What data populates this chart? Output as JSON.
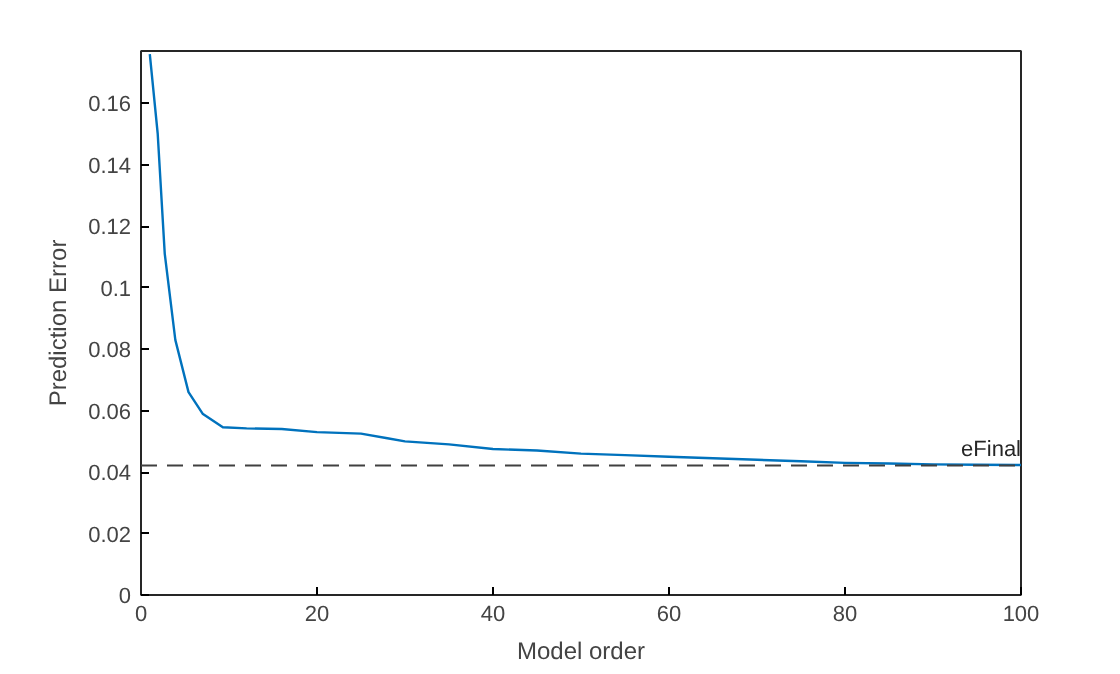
{
  "chart_data": {
    "type": "line",
    "xlabel": "Model order",
    "ylabel": "Prediction Error",
    "xlim": [
      0,
      100
    ],
    "ylim": [
      0,
      0.177
    ],
    "xticks": [
      0,
      20,
      40,
      60,
      80,
      100
    ],
    "yticks": [
      0,
      0.02,
      0.04,
      0.06,
      0.08,
      0.1,
      0.12,
      0.14,
      0.16
    ],
    "grid": false,
    "series": [
      {
        "color": "#0072bd",
        "x": [
          1,
          1.9,
          2.7,
          3.9,
          5.4,
          7,
          9.3,
          12,
          16,
          20,
          25,
          28,
          30,
          35,
          40,
          45,
          50,
          55,
          60,
          65,
          70,
          75,
          80,
          85,
          90,
          95,
          100
        ],
        "values": [
          0.176,
          0.15,
          0.111,
          0.083,
          0.066,
          0.059,
          0.0546,
          0.0542,
          0.054,
          0.053,
          0.0525,
          0.051,
          0.05,
          0.049,
          0.0475,
          0.047,
          0.046,
          0.0455,
          0.045,
          0.0445,
          0.044,
          0.0435,
          0.043,
          0.0428,
          0.0425,
          0.0424,
          0.0423
        ]
      }
    ],
    "ref_lines": [
      {
        "axis": "y",
        "value": 0.0421,
        "label": "eFinal",
        "color": "#404040",
        "line_style": "dashed"
      }
    ]
  }
}
